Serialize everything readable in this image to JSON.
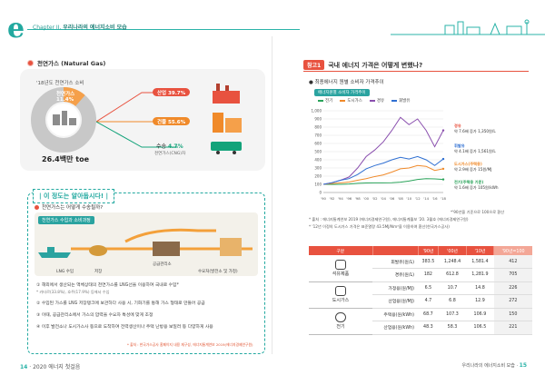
{
  "header": {
    "chapter": "Chapter II.",
    "title": "우리나라의 에너지소비 모습"
  },
  "left": {
    "section_title": "천연가스 (Natural Gas)",
    "donut": {
      "caption": "'18년도 천연가스 소비",
      "import_label": "천연가스",
      "import_pct": "11.4%",
      "total": "26.4백만 toe",
      "segments": [
        11.4,
        88.6
      ]
    },
    "uses": [
      {
        "label": "산업",
        "value": "39.7%"
      },
      {
        "label": "건물",
        "value": "55.6%"
      },
      {
        "label": "수송",
        "value": "4.7%"
      }
    ],
    "uses_small": "천연가스(CNG)차",
    "tip": {
      "title": "| 이 정도는 알아둡시다! |",
      "question": "천연가스는 어떻게 수송될까?",
      "flow_tab": "천연가스 수입과 소비과정",
      "flow_labels": [
        "LNG 수입",
        "저장",
        "공급관리소",
        "수요처(발전소 및 가정)"
      ],
      "notes": [
        {
          "text": "① 해외에서 생산되는 액체상태의 천연가스를 LNG선을 이용하여 국내로 수입*",
          "small": "* 카타르(33.8%), 호주(17.9%) 등에서 수입"
        },
        {
          "text": "② 수입된 가스를 LNG 저장탱크에 보관하다 사용 시, 기화기를 통해 가스 형태로 만들어 공급",
          "small": ""
        },
        {
          "text": "③ 이때, 공급관리소에서 가스의 압력을 수요자 특성에 맞게 조정",
          "small": ""
        },
        {
          "text": "④ 이후 발전소나 도시가스사 등으로 도착하여 전력생산이나 주택 난방용 보일러 등 다양하게 사용",
          "small": ""
        }
      ],
      "source": "* 출처 : 한국가스공사 홈페이지 내용 재구성, 에너지통계연보 2019(에너지경제연구원)"
    }
  },
  "right": {
    "tag": "참고1",
    "title": "국내 에너지 가격은 어떻게 변했나?",
    "subtitle": "최종에너지 원별 소비자 가격추이",
    "chart_tab": "에너지원별 소비자 가격추이",
    "chart_notes": [
      "*'90년을 기준으로 100으로 환산",
      "* 출처 : 에너지통계연보 2019 (에너지경제연구원), 에너지통계월보 '20. 3월호 (에너지경제연구원)",
      "* '12년 이정의 도시가스 가격은 표준열량 43.5MJ/Nm³을 이용하여 환산(한국가스공사)"
    ],
    "series_notes": [
      {
        "name": "경유",
        "text": "약 7.6배 증가 1,350원/L",
        "color": "#e8523f"
      },
      {
        "name": "휘발유",
        "text": "약 4.1배 증가 1,561원/L",
        "color": "#2f6fd2"
      },
      {
        "name": "도시가스(주택용)",
        "text": "약 2.9배 증가 15원/MJ",
        "color": "#f08a2a"
      },
      {
        "name": "전기(주택용 기준)",
        "text": "약 1.6배 증가 105원/kWh",
        "color": "#2aa35a"
      }
    ],
    "table": {
      "headers": [
        "구분",
        "",
        "'90년",
        "'00년",
        "'10년",
        "'90년=100"
      ],
      "groups": [
        {
          "name": "석유제품",
          "rows": [
            {
              "unit": "휘발유(원/L)",
              "v90": "383.5",
              "v00": "1,248.4",
              "v10": "1,581.4",
              "idx": "412"
            },
            {
              "unit": "경유(원/L)",
              "v90": "182",
              "v00": "612.8",
              "v10": "1,281.9",
              "idx": "705"
            }
          ]
        },
        {
          "name": "도시가스",
          "rows": [
            {
              "unit": "가정용(원/MJ)",
              "v90": "6.5",
              "v00": "10.7",
              "v10": "14.8",
              "idx": "226"
            },
            {
              "unit": "산업용(원/MJ)",
              "v90": "4.7",
              "v00": "6.8",
              "v10": "12.9",
              "idx": "272"
            }
          ]
        },
        {
          "name": "전기",
          "rows": [
            {
              "unit": "주택용(원/kWh)",
              "v90": "68.7",
              "v00": "107.3",
              "v10": "106.9",
              "idx": "150"
            },
            {
              "unit": "산업용(원/kWh)",
              "v90": "48.3",
              "v00": "58.3",
              "v10": "106.5",
              "idx": "221"
            }
          ]
        }
      ]
    }
  },
  "chart_data": {
    "type": "line",
    "title": "",
    "x": [
      "'90",
      "'92",
      "'94",
      "'96",
      "'98",
      "'00",
      "'02",
      "'04",
      "'06",
      "'08",
      "'10",
      "'12",
      "'14",
      "'16",
      "'18"
    ],
    "ylim": [
      0,
      1000
    ],
    "yticks": [
      0,
      100,
      200,
      300,
      400,
      500,
      600,
      700,
      800,
      900,
      1000
    ],
    "series": [
      {
        "name": "전기",
        "color": "#2aa35a",
        "values": [
          100,
          98,
          100,
          104,
          112,
          116,
          118,
          118,
          120,
          126,
          140,
          160,
          170,
          166,
          160
        ]
      },
      {
        "name": "도시가스",
        "color": "#f08a2a",
        "values": [
          100,
          110,
          118,
          128,
          150,
          170,
          195,
          215,
          250,
          290,
          300,
          330,
          320,
          270,
          290
        ]
      },
      {
        "name": "경유",
        "color": "#8a4fae",
        "values": [
          100,
          120,
          150,
          190,
          300,
          440,
          520,
          620,
          760,
          920,
          830,
          900,
          760,
          560,
          760
        ]
      },
      {
        "name": "휘발유",
        "color": "#2f6fd2",
        "values": [
          100,
          120,
          150,
          170,
          220,
          290,
          330,
          360,
          400,
          430,
          410,
          440,
          400,
          330,
          410
        ]
      }
    ]
  }
}
